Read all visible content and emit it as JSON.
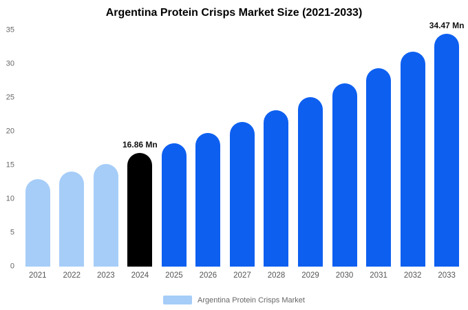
{
  "title": "Argentina Protein Crisps Market Size (2021-2033)",
  "legend": {
    "label": "Argentina Protein Crisps Market",
    "swatch_color": "#a6cdf8"
  },
  "colors": {
    "historical_bar": "#a6cdf8",
    "base_year_bar": "#000000",
    "forecast_bar": "#0d5ff0",
    "axis_text": "#555555",
    "title_text": "#000000",
    "annotation_text": "#111111",
    "background": "#ffffff"
  },
  "chart_data": {
    "type": "bar",
    "title": "Argentina Protein Crisps Market Size (2021-2033)",
    "xlabel": "",
    "ylabel": "",
    "categories": [
      "2021",
      "2022",
      "2023",
      "2024",
      "2025",
      "2026",
      "2027",
      "2028",
      "2029",
      "2030",
      "2031",
      "2032",
      "2033"
    ],
    "values": [
      13.0,
      14.1,
      15.2,
      16.86,
      18.25,
      19.76,
      21.39,
      23.16,
      25.08,
      27.15,
      29.4,
      31.83,
      34.47
    ],
    "unit": "Mn",
    "bar_colors": [
      "#a6cdf8",
      "#a6cdf8",
      "#a6cdf8",
      "#000000",
      "#0d5ff0",
      "#0d5ff0",
      "#0d5ff0",
      "#0d5ff0",
      "#0d5ff0",
      "#0d5ff0",
      "#0d5ff0",
      "#0d5ff0",
      "#0d5ff0"
    ],
    "annotations": [
      {
        "category": "2024",
        "text": "16.86 Mn"
      },
      {
        "category": "2033",
        "text": "34.47 Mn"
      }
    ],
    "ylim": [
      0,
      35
    ],
    "yticks": [
      0,
      5,
      10,
      15,
      20,
      25,
      30,
      35
    ],
    "grid": false,
    "legend_entries": [
      "Argentina Protein Crisps Market"
    ],
    "legend_position": "bottom"
  }
}
